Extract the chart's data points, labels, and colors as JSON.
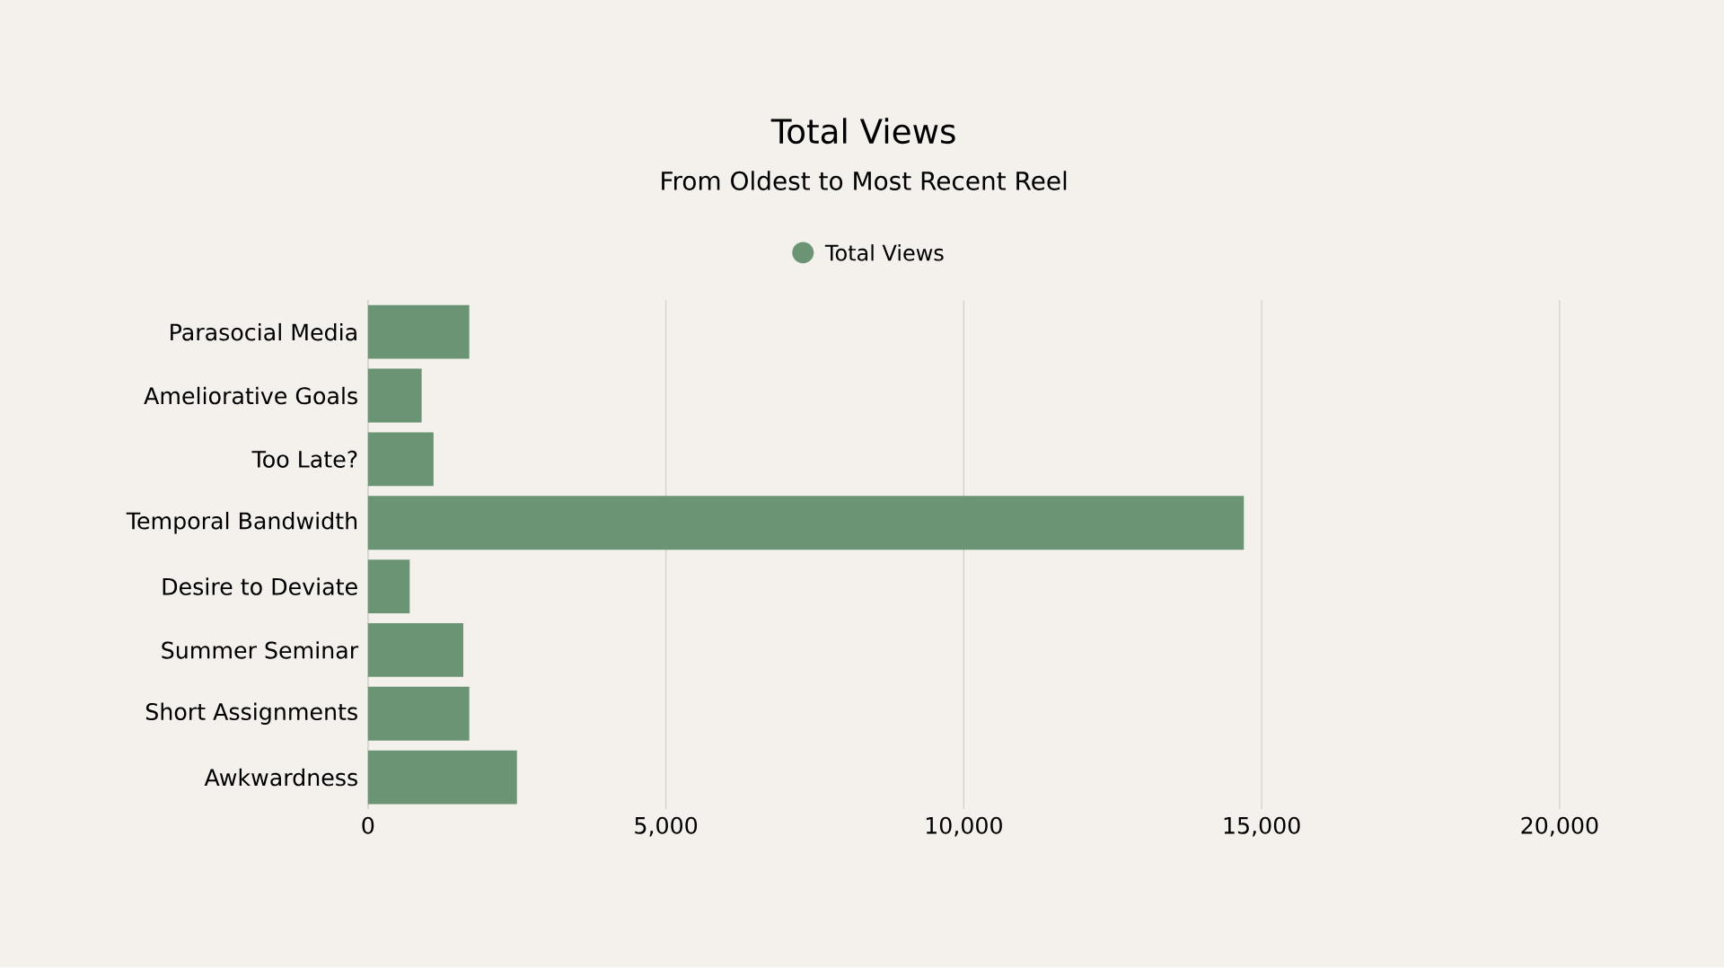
{
  "chart_data": {
    "type": "bar",
    "orientation": "horizontal",
    "title": "Total Views",
    "subtitle": "From Oldest to Most Recent Reel",
    "categories": [
      "Parasocial Media",
      "Ameliorative Goals",
      "Too Late?",
      "Temporal Bandwidth",
      "Desire to Deviate",
      "Summer Seminar",
      "Short Assignments",
      "Awkwardness"
    ],
    "series": [
      {
        "name": "Total Views",
        "color": "#6b9474",
        "values": [
          1700,
          900,
          1100,
          14700,
          700,
          1600,
          1700,
          2500
        ]
      }
    ],
    "xlim": [
      0,
      20000
    ],
    "xticks": [
      0,
      {
        "value": 5000,
        "label": "5,000"
      },
      {
        "value": 10000,
        "label": "10,000"
      },
      {
        "value": 15000,
        "label": "15,000"
      },
      {
        "value": 20000,
        "label": "20,000"
      }
    ],
    "grid": "x",
    "legend": "top",
    "marker": "circle"
  }
}
